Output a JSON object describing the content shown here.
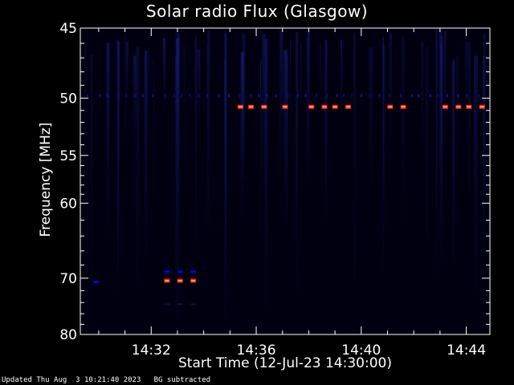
{
  "chart_data": {
    "type": "heatmap",
    "title": "Solar radio Flux (Glasgow)",
    "xlabel": "Start Time (12-Jul-23 14:30:00)",
    "ylabel": "Frequency [MHz]",
    "x_range_minutes": [
      "14:29.3",
      "14:44.9"
    ],
    "x_ticks": [
      "14:32",
      "14:36",
      "14:40",
      "14:44"
    ],
    "x_tick_minutes": [
      32,
      36,
      40,
      44
    ],
    "x_start_minute": 29.3,
    "x_end_minute": 44.9,
    "y_scale": "reciprocal",
    "y_ticks": [
      45,
      50,
      55,
      60,
      70,
      80
    ],
    "ylim": [
      45,
      80
    ],
    "background_color": "#000010",
    "colors": {
      "high": "#ff2020",
      "mid": "#0000ff",
      "faint": "#10104a"
    },
    "emission_features": [
      {
        "freq_mhz": 50.7,
        "minutes": [
          35.4,
          35.8,
          36.3,
          37.1,
          38.1,
          38.6,
          39.0,
          39.5,
          41.1,
          41.6,
          43.2,
          43.7,
          44.1,
          44.6
        ],
        "level": "high"
      },
      {
        "freq_mhz": 70.4,
        "minutes": [
          32.6,
          33.1,
          33.6
        ],
        "level": "high"
      },
      {
        "freq_mhz": 69.0,
        "minutes": [
          32.6,
          33.1,
          33.6
        ],
        "level": "mid"
      },
      {
        "freq_mhz": 74.3,
        "minutes": [
          32.6,
          33.1,
          33.6
        ],
        "level": "faint"
      },
      {
        "freq_mhz": 70.6,
        "minutes": [
          29.9
        ],
        "level": "mid"
      }
    ]
  },
  "footer": {
    "updated": "Updated Thu Aug  3 10:21:40 2023",
    "note": "BG subtracted"
  }
}
